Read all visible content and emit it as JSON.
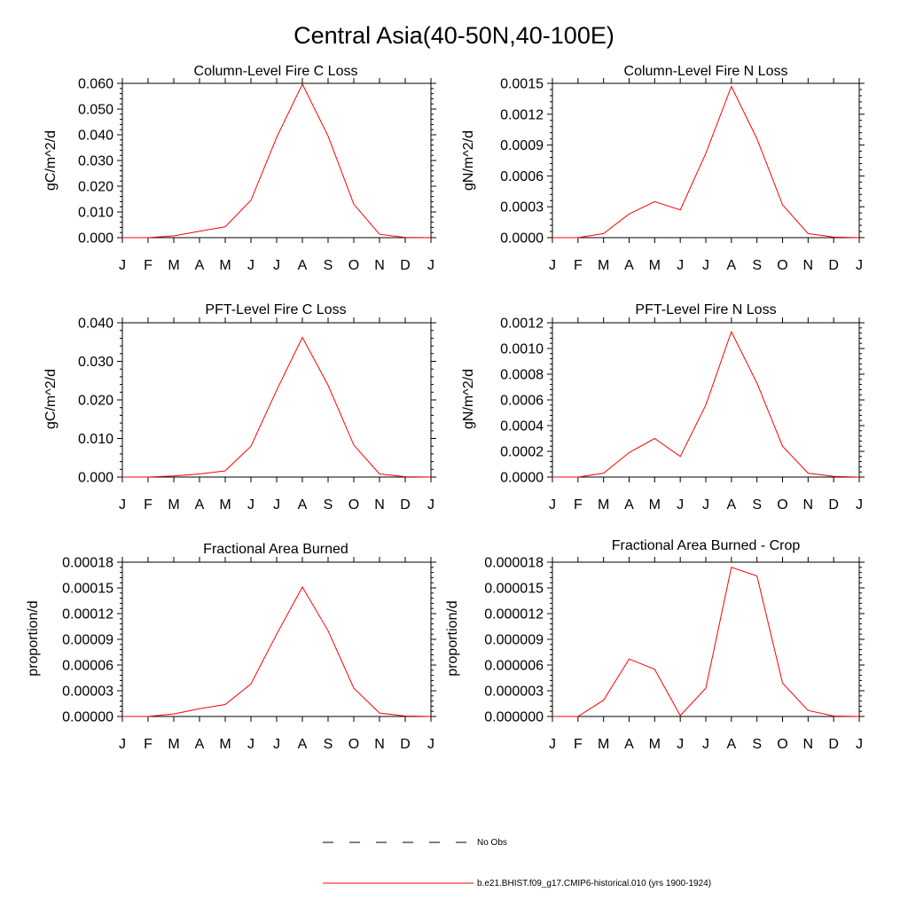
{
  "figure": {
    "title": "Central Asia(40-50N,40-100E)"
  },
  "chart_data": [
    {
      "type": "line",
      "title": "Column-Level Fire C Loss",
      "ylabel": "gC/m^2/d",
      "xlabel": "",
      "x": [
        "J",
        "F",
        "M",
        "A",
        "M",
        "J",
        "J",
        "A",
        "S",
        "O",
        "N",
        "D",
        "J"
      ],
      "ylim": [
        0,
        0.06
      ],
      "yticks": [
        "0.000",
        "0.010",
        "0.020",
        "0.030",
        "0.040",
        "0.050",
        "0.060"
      ],
      "series": [
        {
          "name": "b.e21.BHIST.f09_g17.CMIP6-historical.010 (yrs 1900-1924)",
          "color": "#ff0000",
          "values": [
            0.0,
            0.0,
            0.0007,
            0.0025,
            0.0042,
            0.0145,
            0.039,
            0.0597,
            0.0395,
            0.013,
            0.0013,
            0.0001,
            0.0
          ]
        }
      ]
    },
    {
      "type": "line",
      "title": "Column-Level Fire N Loss",
      "ylabel": "gN/m^2/d",
      "xlabel": "",
      "x": [
        "J",
        "F",
        "M",
        "A",
        "M",
        "J",
        "J",
        "A",
        "S",
        "O",
        "N",
        "D",
        "J"
      ],
      "ylim": [
        0,
        0.0015
      ],
      "yticks": [
        "0.0000",
        "0.0003",
        "0.0006",
        "0.0009",
        "0.0012",
        "0.0015"
      ],
      "series": [
        {
          "name": "b.e21.BHIST.f09_g17.CMIP6-historical.010 (yrs 1900-1924)",
          "color": "#ff0000",
          "values": [
            0.0,
            0.0,
            4e-05,
            0.00023,
            0.00035,
            0.00027,
            0.00082,
            0.00147,
            0.00096,
            0.00032,
            4e-05,
            5e-06,
            0.0
          ]
        }
      ]
    },
    {
      "type": "line",
      "title": "PFT-Level Fire C Loss",
      "ylabel": "gC/m^2/d",
      "xlabel": "",
      "x": [
        "J",
        "F",
        "M",
        "A",
        "M",
        "J",
        "J",
        "A",
        "S",
        "O",
        "N",
        "D",
        "J"
      ],
      "ylim": [
        0,
        0.04
      ],
      "yticks": [
        "0.000",
        "0.010",
        "0.020",
        "0.030",
        "0.040"
      ],
      "series": [
        {
          "name": "b.e21.BHIST.f09_g17.CMIP6-historical.010 (yrs 1900-1924)",
          "color": "#ff0000",
          "values": [
            0.0,
            0.0,
            0.0003,
            0.0008,
            0.0016,
            0.008,
            0.0225,
            0.0362,
            0.0238,
            0.0083,
            0.0008,
            0.0001,
            0.0
          ]
        }
      ]
    },
    {
      "type": "line",
      "title": "PFT-Level Fire N Loss",
      "ylabel": "gN/m^2/d",
      "xlabel": "",
      "x": [
        "J",
        "F",
        "M",
        "A",
        "M",
        "J",
        "J",
        "A",
        "S",
        "O",
        "N",
        "D",
        "J"
      ],
      "ylim": [
        0,
        0.0012
      ],
      "yticks": [
        "0.0000",
        "0.0002",
        "0.0004",
        "0.0006",
        "0.0008",
        "0.0010",
        "0.0012"
      ],
      "series": [
        {
          "name": "b.e21.BHIST.f09_g17.CMIP6-historical.010 (yrs 1900-1924)",
          "color": "#ff0000",
          "values": [
            0.0,
            0.0,
            3e-05,
            0.00019,
            0.0003,
            0.00016,
            0.00056,
            0.00113,
            0.00073,
            0.00024,
            3e-05,
            5e-06,
            0.0
          ]
        }
      ]
    },
    {
      "type": "line",
      "title": "Fractional Area Burned",
      "ylabel": "proportion/d",
      "xlabel": "",
      "x": [
        "J",
        "F",
        "M",
        "A",
        "M",
        "J",
        "J",
        "A",
        "S",
        "O",
        "N",
        "D",
        "J"
      ],
      "ylim": [
        0,
        0.00018
      ],
      "yticks": [
        "0.00000",
        "0.00003",
        "0.00006",
        "0.00009",
        "0.00012",
        "0.00015",
        "0.00018"
      ],
      "series": [
        {
          "name": "b.e21.BHIST.f09_g17.CMIP6-historical.010 (yrs 1900-1924)",
          "color": "#ff0000",
          "values": [
            0.0,
            0.0,
            3e-06,
            9e-06,
            1.4e-05,
            3.8e-05,
            9.6e-05,
            0.000151,
            0.0001,
            3.3e-05,
            4e-06,
            5e-07,
            0.0
          ]
        }
      ]
    },
    {
      "type": "line",
      "title": "Fractional Area Burned - Crop",
      "ylabel": "proportion/d",
      "xlabel": "",
      "x": [
        "J",
        "F",
        "M",
        "A",
        "M",
        "J",
        "J",
        "A",
        "S",
        "O",
        "N",
        "D",
        "J"
      ],
      "ylim": [
        0,
        1.8e-05
      ],
      "yticks": [
        "0.000000",
        "0.000003",
        "0.000006",
        "0.000009",
        "0.000012",
        "0.000015",
        "0.000018"
      ],
      "series": [
        {
          "name": "b.e21.BHIST.f09_g17.CMIP6-historical.010 (yrs 1900-1924)",
          "color": "#ff0000",
          "values": [
            0.0,
            0.0,
            1.9e-06,
            6.7e-06,
            5.5e-06,
            1e-07,
            3.3e-06,
            1.74e-05,
            1.64e-05,
            3.9e-06,
            7e-07,
            5e-08,
            0.0
          ]
        }
      ]
    }
  ],
  "legend": {
    "placement": "bottom-center",
    "entries": [
      {
        "label": "No Obs",
        "color": "#000000",
        "style": "dashed"
      },
      {
        "label": "b.e21.BHIST.f09_g17.CMIP6-historical.010 (yrs 1900-1924)",
        "color": "#ff0000",
        "style": "solid"
      }
    ]
  }
}
